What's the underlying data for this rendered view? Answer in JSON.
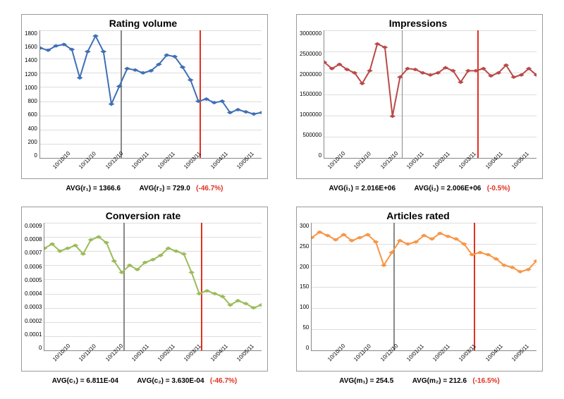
{
  "layout": {
    "rows": 2,
    "cols": 2
  },
  "x_categories": [
    "10/10/10",
    "10/11/10",
    "10/12/10",
    "10/01/11",
    "10/02/11",
    "10/03/11",
    "10/04/11",
    "10/05/11"
  ],
  "x_tick_rotation_deg": -45,
  "marker_vlines": [
    {
      "x_index": 2.55,
      "color": "#888888",
      "width": 1.5
    },
    {
      "x_index": 5.05,
      "color": "#e03020",
      "width": 2
    }
  ],
  "panels": [
    {
      "key": "rating_volume",
      "title": "Rating volume",
      "type": "line",
      "line_color": "#3f6fb5",
      "marker_color": "#3f6fb5",
      "marker_shape": "diamond",
      "marker_size": 5,
      "line_width": 2,
      "ylim": [
        0,
        1800
      ],
      "ytick_step": 200,
      "yticks": [
        0,
        200,
        400,
        600,
        800,
        1000,
        1200,
        1400,
        1600,
        1800
      ],
      "grid_color": "#dddddd",
      "background_color": "#ffffff",
      "title_fontsize": 14,
      "tick_fontsize": 8,
      "values": [
        1550,
        1520,
        1580,
        1600,
        1530,
        1130,
        1500,
        1720,
        1500,
        760,
        1010,
        1260,
        1240,
        1200,
        1230,
        1320,
        1450,
        1430,
        1280,
        1100,
        800,
        830,
        780,
        800,
        640,
        680,
        650,
        620,
        640
      ],
      "stats": {
        "label1": "AVG(r₁) = 1366.6",
        "label2": "AVG(r₂) = 729.0",
        "pct": "(-46.7%)"
      }
    },
    {
      "key": "impressions",
      "title": "Impressions",
      "type": "line",
      "line_color": "#b94a48",
      "marker_color": "#b94a48",
      "marker_shape": "diamond",
      "marker_size": 5,
      "line_width": 2,
      "ylim": [
        0,
        3000000
      ],
      "ytick_step": 500000,
      "yticks": [
        0,
        500000,
        1000000,
        1500000,
        2000000,
        2500000,
        3000000
      ],
      "grid_color": "#dddddd",
      "background_color": "#ffffff",
      "title_fontsize": 14,
      "tick_fontsize": 8,
      "values": [
        2250000,
        2100000,
        2200000,
        2080000,
        2000000,
        1750000,
        2050000,
        2680000,
        2600000,
        980000,
        1900000,
        2100000,
        2080000,
        2000000,
        1950000,
        2000000,
        2120000,
        2050000,
        1780000,
        2050000,
        2050000,
        2100000,
        1930000,
        2000000,
        2180000,
        1900000,
        1950000,
        2100000,
        1950000
      ],
      "stats": {
        "label1": "AVG(i₁) = 2.016E+06",
        "label2": "AVG(i₂) = 2.006E+06",
        "pct": "(-0.5%)"
      }
    },
    {
      "key": "conversion_rate",
      "title": "Conversion rate",
      "type": "line",
      "line_color": "#9bbb59",
      "marker_color": "#9bbb59",
      "marker_shape": "diamond",
      "marker_size": 5,
      "line_width": 2,
      "ylim": [
        0,
        0.0009
      ],
      "ytick_step": 0.0001,
      "yticks": [
        0,
        0.0001,
        0.0002,
        0.0003,
        0.0004,
        0.0005,
        0.0006,
        0.0007,
        0.0008,
        0.0009
      ],
      "grid_color": "#dddddd",
      "background_color": "#ffffff",
      "title_fontsize": 14,
      "tick_fontsize": 8,
      "values": [
        0.00072,
        0.00075,
        0.0007,
        0.00072,
        0.00074,
        0.00068,
        0.00078,
        0.0008,
        0.00076,
        0.00063,
        0.00055,
        0.0006,
        0.00057,
        0.00062,
        0.00064,
        0.00067,
        0.00072,
        0.0007,
        0.00068,
        0.00055,
        0.0004,
        0.00042,
        0.0004,
        0.00038,
        0.00032,
        0.00035,
        0.00033,
        0.0003,
        0.00032
      ],
      "stats": {
        "label1": "AVG(c₁) = 6.811E-04",
        "label2": "AVG(c₂) = 3.630E-04",
        "pct": "(-46.7%)"
      }
    },
    {
      "key": "articles_rated",
      "title": "Articles rated",
      "type": "line",
      "line_color": "#f79646",
      "marker_color": "#f79646",
      "marker_shape": "diamond",
      "marker_size": 5,
      "line_width": 2,
      "ylim": [
        0,
        300
      ],
      "ytick_step": 50,
      "yticks": [
        0,
        50,
        100,
        150,
        200,
        250,
        300
      ],
      "grid_color": "#dddddd",
      "background_color": "#ffffff",
      "title_fontsize": 14,
      "tick_fontsize": 8,
      "values": [
        265,
        278,
        270,
        260,
        272,
        258,
        265,
        272,
        255,
        200,
        230,
        258,
        250,
        255,
        270,
        262,
        275,
        268,
        262,
        250,
        225,
        230,
        225,
        215,
        200,
        195,
        185,
        190,
        210
      ],
      "stats": {
        "label1": "AVG(m₁) = 254.5",
        "label2": "AVG(m₂) = 212.6",
        "pct": "(-16.5%)"
      }
    }
  ]
}
